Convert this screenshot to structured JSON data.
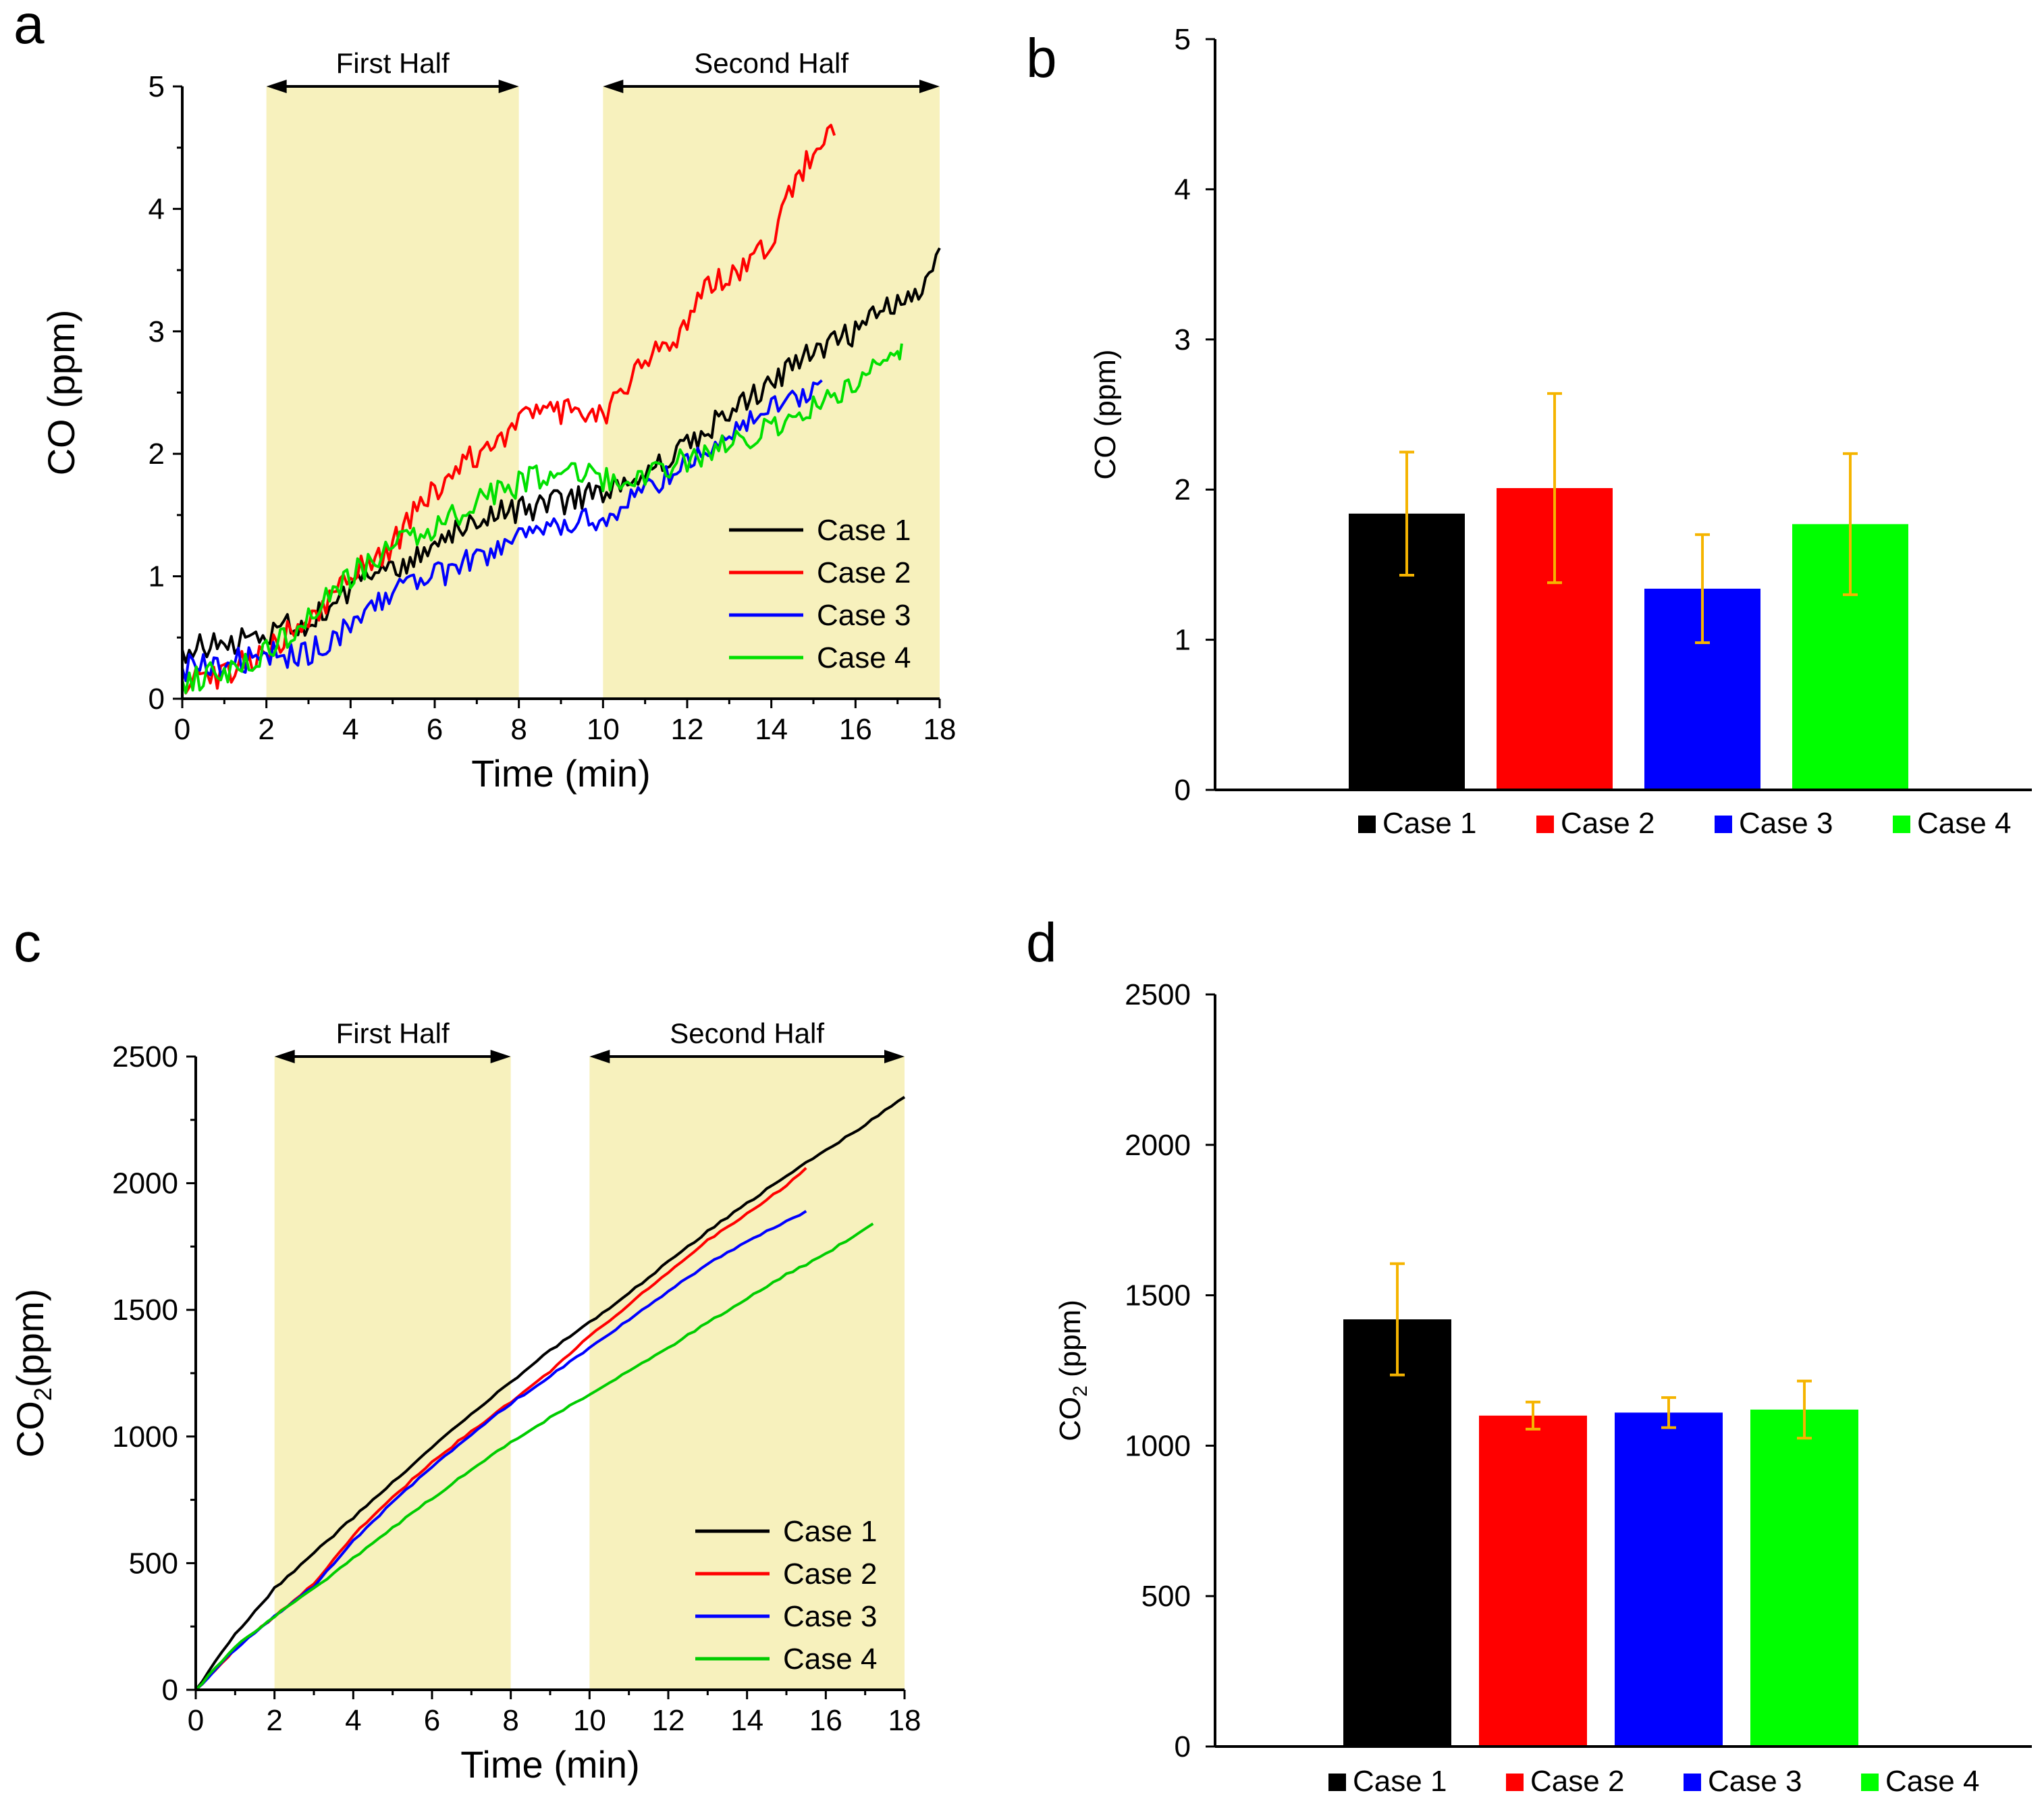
{
  "chart_data": [
    {
      "panel": "a",
      "type": "line",
      "title": "",
      "xlabel": "Time (min)",
      "ylabel": "CO (ppm)",
      "xlim": [
        0,
        18
      ],
      "ylim": [
        0,
        5
      ],
      "xticks": [
        0,
        2,
        4,
        6,
        8,
        10,
        12,
        14,
        16,
        18
      ],
      "yticks": [
        0,
        1,
        2,
        3,
        4,
        5
      ],
      "grid": false,
      "legend": "bottom-right",
      "regions": [
        {
          "label": "First Half",
          "from": 2,
          "to": 8
        },
        {
          "label": "Second Half",
          "from": 10,
          "to": 18
        }
      ],
      "series": [
        {
          "name": "Case 1",
          "color": "#000000",
          "points": [
            [
              0,
              0.4
            ],
            [
              1,
              0.45
            ],
            [
              2,
              0.55
            ],
            [
              3,
              0.62
            ],
            [
              4,
              0.9
            ],
            [
              5,
              1.05
            ],
            [
              6,
              1.3
            ],
            [
              7,
              1.45
            ],
            [
              8,
              1.55
            ],
            [
              9,
              1.6
            ],
            [
              10,
              1.7
            ],
            [
              11,
              1.85
            ],
            [
              12,
              2.05
            ],
            [
              13,
              2.35
            ],
            [
              14,
              2.6
            ],
            [
              15,
              2.85
            ],
            [
              16,
              3.0
            ],
            [
              17,
              3.25
            ],
            [
              17.5,
              3.3
            ],
            [
              18,
              3.68
            ]
          ]
        },
        {
          "name": "Case 2",
          "color": "#ff0000",
          "points": [
            [
              0,
              0.15
            ],
            [
              1,
              0.2
            ],
            [
              2,
              0.4
            ],
            [
              3,
              0.65
            ],
            [
              4,
              1.0
            ],
            [
              5,
              1.25
            ],
            [
              5.5,
              1.5
            ],
            [
              6,
              1.7
            ],
            [
              7,
              2.0
            ],
            [
              8,
              2.25
            ],
            [
              8.5,
              2.38
            ],
            [
              9,
              2.35
            ],
            [
              10,
              2.28
            ],
            [
              10.5,
              2.5
            ],
            [
              11,
              2.75
            ],
            [
              12,
              3.05
            ],
            [
              12.5,
              3.4
            ],
            [
              13,
              3.45
            ],
            [
              13.5,
              3.6
            ],
            [
              14,
              3.75
            ],
            [
              14.5,
              4.2
            ],
            [
              15,
              4.45
            ],
            [
              15.5,
              4.6
            ]
          ]
        },
        {
          "name": "Case 3",
          "color": "#0000ff",
          "points": [
            [
              0,
              0.25
            ],
            [
              1,
              0.3
            ],
            [
              2,
              0.35
            ],
            [
              3,
              0.38
            ],
            [
              4,
              0.6
            ],
            [
              5,
              0.85
            ],
            [
              6,
              1.0
            ],
            [
              7,
              1.15
            ],
            [
              8,
              1.3
            ],
            [
              9,
              1.4
            ],
            [
              10,
              1.5
            ],
            [
              11,
              1.7
            ],
            [
              12,
              1.95
            ],
            [
              13,
              2.2
            ],
            [
              14,
              2.35
            ],
            [
              15,
              2.55
            ],
            [
              15.2,
              2.6
            ]
          ]
        },
        {
          "name": "Case 4",
          "color": "#00e000",
          "points": [
            [
              0,
              0.15
            ],
            [
              1,
              0.22
            ],
            [
              2,
              0.4
            ],
            [
              3,
              0.65
            ],
            [
              4,
              1.0
            ],
            [
              5,
              1.25
            ],
            [
              6,
              1.4
            ],
            [
              7,
              1.6
            ],
            [
              8,
              1.75
            ],
            [
              8.5,
              1.82
            ],
            [
              9,
              1.85
            ],
            [
              10,
              1.8
            ],
            [
              11,
              1.85
            ],
            [
              12,
              1.95
            ],
            [
              13,
              2.1
            ],
            [
              14,
              2.2
            ],
            [
              15,
              2.4
            ],
            [
              16,
              2.6
            ],
            [
              17,
              2.85
            ],
            [
              17.1,
              2.9
            ]
          ]
        }
      ]
    },
    {
      "panel": "b",
      "type": "bar",
      "title": "",
      "xlabel": "",
      "ylabel": "CO (ppm)",
      "ylim": [
        0,
        5
      ],
      "yticks": [
        0,
        1,
        2,
        3,
        4,
        5
      ],
      "grid": false,
      "legend": "bottom",
      "categories": [
        "Case 1",
        "Case 2",
        "Case 3",
        "Case 4"
      ],
      "colors": [
        "#000000",
        "#ff0000",
        "#0000ff",
        "#00ff00"
      ],
      "error_color": "#f5b400",
      "values": [
        1.84,
        2.01,
        1.34,
        1.77
      ],
      "errors": [
        0.41,
        0.63,
        0.36,
        0.47
      ]
    },
    {
      "panel": "c",
      "type": "line",
      "title": "",
      "xlabel": "Time (min)",
      "ylabel": "CO",
      "ylabel_sub": "2",
      "ylabel_unit": "(ppm)",
      "xlim": [
        0,
        18
      ],
      "ylim": [
        0,
        2500
      ],
      "xticks": [
        0,
        2,
        4,
        6,
        8,
        10,
        12,
        14,
        16,
        18
      ],
      "yticks": [
        0,
        500,
        1000,
        1500,
        2000,
        2500
      ],
      "grid": false,
      "legend": "bottom-right",
      "regions": [
        {
          "label": "First Half",
          "from": 2,
          "to": 8
        },
        {
          "label": "Second Half",
          "from": 10,
          "to": 18
        }
      ],
      "series": [
        {
          "name": "Case 1",
          "color": "#000000",
          "points": [
            [
              0,
              0
            ],
            [
              1,
              220
            ],
            [
              2,
              400
            ],
            [
              3,
              540
            ],
            [
              4,
              680
            ],
            [
              5,
              820
            ],
            [
              6,
              955
            ],
            [
              7,
              1090
            ],
            [
              8,
              1215
            ],
            [
              9,
              1340
            ],
            [
              10,
              1450
            ],
            [
              11,
              1565
            ],
            [
              12,
              1690
            ],
            [
              13,
              1810
            ],
            [
              14,
              1920
            ],
            [
              15,
              2030
            ],
            [
              16,
              2130
            ],
            [
              17,
              2230
            ],
            [
              18,
              2340
            ]
          ]
        },
        {
          "name": "Case 2",
          "color": "#ff0000",
          "points": [
            [
              0,
              0
            ],
            [
              1,
              160
            ],
            [
              2,
              290
            ],
            [
              3,
              420
            ],
            [
              4,
              610
            ],
            [
              5,
              760
            ],
            [
              6,
              900
            ],
            [
              7,
              1020
            ],
            [
              8,
              1135
            ],
            [
              9,
              1255
            ],
            [
              10,
              1395
            ],
            [
              11,
              1520
            ],
            [
              12,
              1650
            ],
            [
              13,
              1775
            ],
            [
              14,
              1880
            ],
            [
              15,
              1990
            ],
            [
              15.5,
              2060
            ]
          ]
        },
        {
          "name": "Case 3",
          "color": "#0000ff",
          "points": [
            [
              0,
              0
            ],
            [
              1,
              160
            ],
            [
              2,
              290
            ],
            [
              3,
              410
            ],
            [
              4,
              590
            ],
            [
              5,
              740
            ],
            [
              6,
              880
            ],
            [
              7,
              1010
            ],
            [
              8,
              1130
            ],
            [
              9,
              1240
            ],
            [
              10,
              1350
            ],
            [
              11,
              1460
            ],
            [
              12,
              1575
            ],
            [
              13,
              1680
            ],
            [
              14,
              1770
            ],
            [
              15,
              1850
            ],
            [
              15.5,
              1890
            ]
          ]
        },
        {
          "name": "Case 4",
          "color": "#00cc00",
          "points": [
            [
              0,
              0
            ],
            [
              1,
              170
            ],
            [
              2,
              290
            ],
            [
              3,
              400
            ],
            [
              4,
              520
            ],
            [
              5,
              640
            ],
            [
              6,
              755
            ],
            [
              7,
              870
            ],
            [
              8,
              975
            ],
            [
              9,
              1075
            ],
            [
              10,
              1165
            ],
            [
              11,
              1260
            ],
            [
              12,
              1350
            ],
            [
              13,
              1450
            ],
            [
              14,
              1545
            ],
            [
              15,
              1640
            ],
            [
              16,
              1720
            ],
            [
              17.2,
              1840
            ]
          ]
        }
      ]
    },
    {
      "panel": "d",
      "type": "bar",
      "title": "",
      "xlabel": "",
      "ylabel": "CO",
      "ylabel_sub": "2",
      "ylabel_unit": " (ppm)",
      "ylim": [
        0,
        2500
      ],
      "yticks": [
        0,
        500,
        1000,
        1500,
        2000,
        2500
      ],
      "grid": false,
      "legend": "bottom",
      "categories": [
        "Case 1",
        "Case 2",
        "Case 3",
        "Case 4"
      ],
      "colors": [
        "#000000",
        "#ff0000",
        "#0000ff",
        "#00ff00"
      ],
      "error_color": "#f5b400",
      "values": [
        1420,
        1100,
        1110,
        1120
      ],
      "errors": [
        185,
        45,
        50,
        95
      ]
    }
  ]
}
